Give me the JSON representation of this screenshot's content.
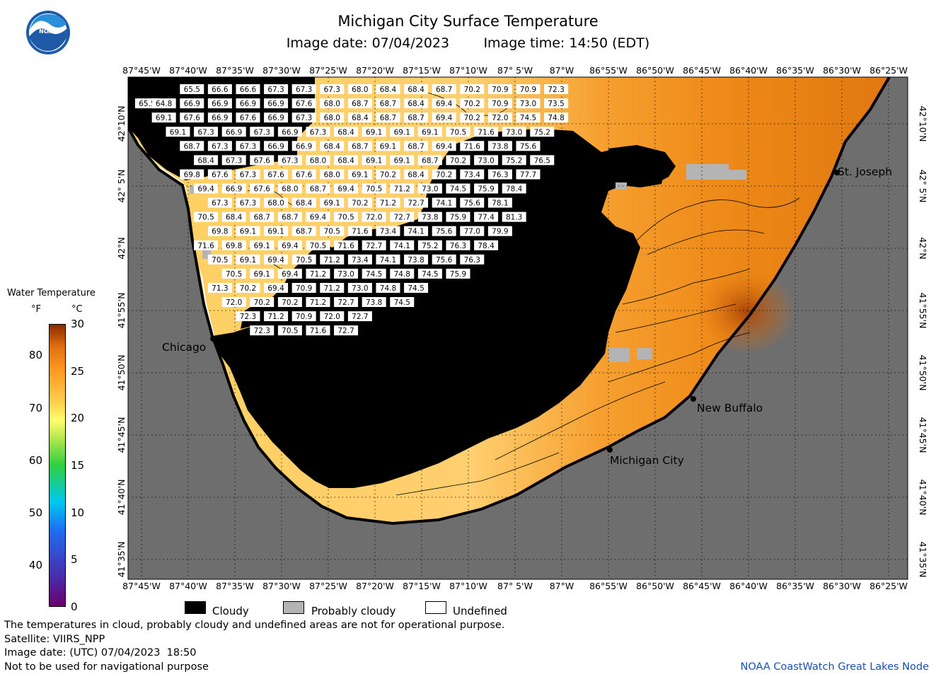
{
  "header": {
    "title": "Michigan City Surface Temperature",
    "image_date_label": "Image date: 07/04/2023",
    "image_time_label": "Image time: 14:50 (EDT)",
    "logo_text": "NOAA"
  },
  "map": {
    "lon_labels": [
      "87°45'W",
      "87°40'W",
      "87°35'W",
      "87°30'W",
      "87°25'W",
      "87°20'W",
      "87°15'W",
      "87°10'W",
      "87° 5'W",
      "87°W",
      "86°55'W",
      "86°50'W",
      "86°45'W",
      "86°40'W",
      "86°35'W",
      "86°30'W",
      "86°25'W"
    ],
    "lat_labels": [
      "42°10'N",
      "42° 5'N",
      "42°N",
      "41°55'N",
      "41°50'N",
      "41°45'N",
      "41°40'N",
      "41°35'N"
    ],
    "places": [
      {
        "name": "St. Joseph"
      },
      {
        "name": "Chicago"
      },
      {
        "name": "New Buffalo"
      },
      {
        "name": "Michigan City"
      }
    ],
    "colors": {
      "land": "#6e6e6e",
      "cloud": "#000000",
      "probably_cloudy": "#b4b4b4",
      "undefined": "#ffffff"
    },
    "temperature_labels": [
      {
        "lon": -87.66,
        "lat": 42.213,
        "value": "65.5"
      },
      {
        "lon": -87.61,
        "lat": 42.213,
        "value": "66.6"
      },
      {
        "lon": -87.56,
        "lat": 42.213,
        "value": "66.6"
      },
      {
        "lon": -87.51,
        "lat": 42.213,
        "value": "67.3"
      },
      {
        "lon": -87.46,
        "lat": 42.213,
        "value": "67.3"
      },
      {
        "lon": -87.41,
        "lat": 42.213,
        "value": "67.3"
      },
      {
        "lon": -87.36,
        "lat": 42.213,
        "value": "68.0"
      },
      {
        "lon": -87.31,
        "lat": 42.213,
        "value": "68.4"
      },
      {
        "lon": -87.26,
        "lat": 42.213,
        "value": "68.4"
      },
      {
        "lon": -87.21,
        "lat": 42.213,
        "value": "68.7"
      },
      {
        "lon": -87.16,
        "lat": 42.213,
        "value": "70.2"
      },
      {
        "lon": -87.11,
        "lat": 42.213,
        "value": "70.9"
      },
      {
        "lon": -87.06,
        "lat": 42.213,
        "value": "70.9"
      },
      {
        "lon": -87.01,
        "lat": 42.213,
        "value": "72.3"
      },
      {
        "lon": -87.74,
        "lat": 42.194,
        "value": "65.5"
      },
      {
        "lon": -87.71,
        "lat": 42.194,
        "value": "64.8"
      },
      {
        "lon": -87.66,
        "lat": 42.194,
        "value": "66.9"
      },
      {
        "lon": -87.61,
        "lat": 42.194,
        "value": "66.9"
      },
      {
        "lon": -87.56,
        "lat": 42.194,
        "value": "66.9"
      },
      {
        "lon": -87.51,
        "lat": 42.194,
        "value": "66.9"
      },
      {
        "lon": -87.46,
        "lat": 42.194,
        "value": "67.6"
      },
      {
        "lon": -87.41,
        "lat": 42.194,
        "value": "68.0"
      },
      {
        "lon": -87.36,
        "lat": 42.194,
        "value": "68.7"
      },
      {
        "lon": -87.31,
        "lat": 42.194,
        "value": "68.7"
      },
      {
        "lon": -87.26,
        "lat": 42.194,
        "value": "68.4"
      },
      {
        "lon": -87.21,
        "lat": 42.194,
        "value": "69.4"
      },
      {
        "lon": -87.16,
        "lat": 42.194,
        "value": "70.2"
      },
      {
        "lon": -87.11,
        "lat": 42.194,
        "value": "70.9"
      },
      {
        "lon": -87.06,
        "lat": 42.194,
        "value": "73.0"
      },
      {
        "lon": -87.01,
        "lat": 42.194,
        "value": "73.5"
      },
      {
        "lon": -87.71,
        "lat": 42.175,
        "value": "69.1"
      },
      {
        "lon": -87.66,
        "lat": 42.175,
        "value": "67.6"
      },
      {
        "lon": -87.61,
        "lat": 42.175,
        "value": "66.9"
      },
      {
        "lon": -87.56,
        "lat": 42.175,
        "value": "67.6"
      },
      {
        "lon": -87.51,
        "lat": 42.175,
        "value": "66.9"
      },
      {
        "lon": -87.46,
        "lat": 42.175,
        "value": "67.3"
      },
      {
        "lon": -87.41,
        "lat": 42.175,
        "value": "68.0"
      },
      {
        "lon": -87.36,
        "lat": 42.175,
        "value": "68.4"
      },
      {
        "lon": -87.31,
        "lat": 42.175,
        "value": "68.7"
      },
      {
        "lon": -87.26,
        "lat": 42.175,
        "value": "68.7"
      },
      {
        "lon": -87.21,
        "lat": 42.175,
        "value": "69.4"
      },
      {
        "lon": -87.16,
        "lat": 42.175,
        "value": "70.2"
      },
      {
        "lon": -87.11,
        "lat": 42.175,
        "value": "72.0"
      },
      {
        "lon": -87.06,
        "lat": 42.175,
        "value": "74.5"
      },
      {
        "lon": -87.01,
        "lat": 42.175,
        "value": "74.8"
      },
      {
        "lon": -87.685,
        "lat": 42.156,
        "value": "69.1"
      },
      {
        "lon": -87.635,
        "lat": 42.156,
        "value": "67.3"
      },
      {
        "lon": -87.585,
        "lat": 42.156,
        "value": "66.9"
      },
      {
        "lon": -87.535,
        "lat": 42.156,
        "value": "67.3"
      },
      {
        "lon": -87.485,
        "lat": 42.156,
        "value": "66.9"
      },
      {
        "lon": -87.435,
        "lat": 42.156,
        "value": "67.3"
      },
      {
        "lon": -87.385,
        "lat": 42.156,
        "value": "68.4"
      },
      {
        "lon": -87.335,
        "lat": 42.156,
        "value": "69.1"
      },
      {
        "lon": -87.285,
        "lat": 42.156,
        "value": "69.1"
      },
      {
        "lon": -87.235,
        "lat": 42.156,
        "value": "69.1"
      },
      {
        "lon": -87.185,
        "lat": 42.156,
        "value": "70.5"
      },
      {
        "lon": -87.135,
        "lat": 42.156,
        "value": "71.6"
      },
      {
        "lon": -87.085,
        "lat": 42.156,
        "value": "73.0"
      },
      {
        "lon": -87.035,
        "lat": 42.156,
        "value": "75.2"
      },
      {
        "lon": -87.66,
        "lat": 42.137,
        "value": "68.7"
      },
      {
        "lon": -87.61,
        "lat": 42.137,
        "value": "67.3"
      },
      {
        "lon": -87.56,
        "lat": 42.137,
        "value": "67.3"
      },
      {
        "lon": -87.51,
        "lat": 42.137,
        "value": "66.9"
      },
      {
        "lon": -87.46,
        "lat": 42.137,
        "value": "66.9"
      },
      {
        "lon": -87.41,
        "lat": 42.137,
        "value": "68.4"
      },
      {
        "lon": -87.36,
        "lat": 42.137,
        "value": "68.7"
      },
      {
        "lon": -87.31,
        "lat": 42.137,
        "value": "69.1"
      },
      {
        "lon": -87.26,
        "lat": 42.137,
        "value": "68.7"
      },
      {
        "lon": -87.21,
        "lat": 42.137,
        "value": "69.4"
      },
      {
        "lon": -87.16,
        "lat": 42.137,
        "value": "71.6"
      },
      {
        "lon": -87.11,
        "lat": 42.137,
        "value": "73.8"
      },
      {
        "lon": -87.06,
        "lat": 42.137,
        "value": "75.6"
      },
      {
        "lon": -87.635,
        "lat": 42.118,
        "value": "68.4"
      },
      {
        "lon": -87.585,
        "lat": 42.118,
        "value": "67.3"
      },
      {
        "lon": -87.535,
        "lat": 42.118,
        "value": "67.6"
      },
      {
        "lon": -87.485,
        "lat": 42.118,
        "value": "67.3"
      },
      {
        "lon": -87.435,
        "lat": 42.118,
        "value": "68.0"
      },
      {
        "lon": -87.385,
        "lat": 42.118,
        "value": "68.4"
      },
      {
        "lon": -87.335,
        "lat": 42.118,
        "value": "69.1"
      },
      {
        "lon": -87.285,
        "lat": 42.118,
        "value": "69.1"
      },
      {
        "lon": -87.235,
        "lat": 42.118,
        "value": "68.7"
      },
      {
        "lon": -87.185,
        "lat": 42.118,
        "value": "70.2"
      },
      {
        "lon": -87.135,
        "lat": 42.118,
        "value": "73.0"
      },
      {
        "lon": -87.085,
        "lat": 42.118,
        "value": "75.2"
      },
      {
        "lon": -87.035,
        "lat": 42.118,
        "value": "76.5"
      },
      {
        "lon": -87.66,
        "lat": 42.099,
        "value": "69.8"
      },
      {
        "lon": -87.61,
        "lat": 42.099,
        "value": "67.6"
      },
      {
        "lon": -87.56,
        "lat": 42.099,
        "value": "67.3"
      },
      {
        "lon": -87.51,
        "lat": 42.099,
        "value": "67.6"
      },
      {
        "lon": -87.46,
        "lat": 42.099,
        "value": "67.6"
      },
      {
        "lon": -87.41,
        "lat": 42.099,
        "value": "68.0"
      },
      {
        "lon": -87.36,
        "lat": 42.099,
        "value": "69.1"
      },
      {
        "lon": -87.31,
        "lat": 42.099,
        "value": "70.2"
      },
      {
        "lon": -87.26,
        "lat": 42.099,
        "value": "68.4"
      },
      {
        "lon": -87.21,
        "lat": 42.099,
        "value": "70.2"
      },
      {
        "lon": -87.16,
        "lat": 42.099,
        "value": "73.4"
      },
      {
        "lon": -87.11,
        "lat": 42.099,
        "value": "76.3"
      },
      {
        "lon": -87.06,
        "lat": 42.099,
        "value": "77.7"
      },
      {
        "lon": -87.635,
        "lat": 42.08,
        "value": "69.4"
      },
      {
        "lon": -87.585,
        "lat": 42.08,
        "value": "66.9"
      },
      {
        "lon": -87.535,
        "lat": 42.08,
        "value": "67.6"
      },
      {
        "lon": -87.485,
        "lat": 42.08,
        "value": "68.0"
      },
      {
        "lon": -87.435,
        "lat": 42.08,
        "value": "68.7"
      },
      {
        "lon": -87.385,
        "lat": 42.08,
        "value": "69.4"
      },
      {
        "lon": -87.335,
        "lat": 42.08,
        "value": "70.5"
      },
      {
        "lon": -87.285,
        "lat": 42.08,
        "value": "71.2"
      },
      {
        "lon": -87.235,
        "lat": 42.08,
        "value": "73.0"
      },
      {
        "lon": -87.185,
        "lat": 42.08,
        "value": "74.5"
      },
      {
        "lon": -87.135,
        "lat": 42.08,
        "value": "75.9"
      },
      {
        "lon": -87.085,
        "lat": 42.08,
        "value": "78.4"
      },
      {
        "lon": -87.61,
        "lat": 42.061,
        "value": "67.3"
      },
      {
        "lon": -87.56,
        "lat": 42.061,
        "value": "67.3"
      },
      {
        "lon": -87.51,
        "lat": 42.061,
        "value": "68.0"
      },
      {
        "lon": -87.46,
        "lat": 42.061,
        "value": "68.4"
      },
      {
        "lon": -87.41,
        "lat": 42.061,
        "value": "69.1"
      },
      {
        "lon": -87.36,
        "lat": 42.061,
        "value": "70.2"
      },
      {
        "lon": -87.31,
        "lat": 42.061,
        "value": "71.2"
      },
      {
        "lon": -87.26,
        "lat": 42.061,
        "value": "72.7"
      },
      {
        "lon": -87.21,
        "lat": 42.061,
        "value": "74.1"
      },
      {
        "lon": -87.16,
        "lat": 42.061,
        "value": "75.6"
      },
      {
        "lon": -87.11,
        "lat": 42.061,
        "value": "78.1"
      },
      {
        "lon": -87.635,
        "lat": 42.042,
        "value": "70.5"
      },
      {
        "lon": -87.585,
        "lat": 42.042,
        "value": "68.4"
      },
      {
        "lon": -87.535,
        "lat": 42.042,
        "value": "68.7"
      },
      {
        "lon": -87.485,
        "lat": 42.042,
        "value": "68.7"
      },
      {
        "lon": -87.435,
        "lat": 42.042,
        "value": "69.4"
      },
      {
        "lon": -87.385,
        "lat": 42.042,
        "value": "70.5"
      },
      {
        "lon": -87.335,
        "lat": 42.042,
        "value": "72.0"
      },
      {
        "lon": -87.285,
        "lat": 42.042,
        "value": "72.7"
      },
      {
        "lon": -87.235,
        "lat": 42.042,
        "value": "73.8"
      },
      {
        "lon": -87.185,
        "lat": 42.042,
        "value": "75.9"
      },
      {
        "lon": -87.135,
        "lat": 42.042,
        "value": "77.4"
      },
      {
        "lon": -87.085,
        "lat": 42.042,
        "value": "81.3"
      },
      {
        "lon": -87.61,
        "lat": 42.023,
        "value": "69.8"
      },
      {
        "lon": -87.56,
        "lat": 42.023,
        "value": "69.1"
      },
      {
        "lon": -87.51,
        "lat": 42.023,
        "value": "69.1"
      },
      {
        "lon": -87.46,
        "lat": 42.023,
        "value": "68.7"
      },
      {
        "lon": -87.41,
        "lat": 42.023,
        "value": "70.5"
      },
      {
        "lon": -87.36,
        "lat": 42.023,
        "value": "71.6"
      },
      {
        "lon": -87.31,
        "lat": 42.023,
        "value": "73.4"
      },
      {
        "lon": -87.26,
        "lat": 42.023,
        "value": "74.1"
      },
      {
        "lon": -87.21,
        "lat": 42.023,
        "value": "75.6"
      },
      {
        "lon": -87.16,
        "lat": 42.023,
        "value": "77.0"
      },
      {
        "lon": -87.11,
        "lat": 42.023,
        "value": "79.9"
      },
      {
        "lon": -87.635,
        "lat": 42.004,
        "value": "71.6"
      },
      {
        "lon": -87.585,
        "lat": 42.004,
        "value": "69.8"
      },
      {
        "lon": -87.535,
        "lat": 42.004,
        "value": "69.1"
      },
      {
        "lon": -87.485,
        "lat": 42.004,
        "value": "69.4"
      },
      {
        "lon": -87.435,
        "lat": 42.004,
        "value": "70.5"
      },
      {
        "lon": -87.385,
        "lat": 42.004,
        "value": "71.6"
      },
      {
        "lon": -87.335,
        "lat": 42.004,
        "value": "72.7"
      },
      {
        "lon": -87.285,
        "lat": 42.004,
        "value": "74.1"
      },
      {
        "lon": -87.235,
        "lat": 42.004,
        "value": "75.2"
      },
      {
        "lon": -87.185,
        "lat": 42.004,
        "value": "76.3"
      },
      {
        "lon": -87.135,
        "lat": 42.004,
        "value": "78.4"
      },
      {
        "lon": -87.61,
        "lat": 41.985,
        "value": "70.5"
      },
      {
        "lon": -87.56,
        "lat": 41.985,
        "value": "69.1"
      },
      {
        "lon": -87.51,
        "lat": 41.985,
        "value": "69.4"
      },
      {
        "lon": -87.46,
        "lat": 41.985,
        "value": "70.5"
      },
      {
        "lon": -87.41,
        "lat": 41.985,
        "value": "71.2"
      },
      {
        "lon": -87.36,
        "lat": 41.985,
        "value": "73.4"
      },
      {
        "lon": -87.31,
        "lat": 41.985,
        "value": "74.1"
      },
      {
        "lon": -87.26,
        "lat": 41.985,
        "value": "73.8"
      },
      {
        "lon": -87.21,
        "lat": 41.985,
        "value": "75.6"
      },
      {
        "lon": -87.16,
        "lat": 41.985,
        "value": "76.3"
      },
      {
        "lon": -87.585,
        "lat": 41.966,
        "value": "70.5"
      },
      {
        "lon": -87.535,
        "lat": 41.966,
        "value": "69.1"
      },
      {
        "lon": -87.485,
        "lat": 41.966,
        "value": "69.4"
      },
      {
        "lon": -87.435,
        "lat": 41.966,
        "value": "71.2"
      },
      {
        "lon": -87.385,
        "lat": 41.966,
        "value": "73.0"
      },
      {
        "lon": -87.335,
        "lat": 41.966,
        "value": "74.5"
      },
      {
        "lon": -87.285,
        "lat": 41.966,
        "value": "74.8"
      },
      {
        "lon": -87.235,
        "lat": 41.966,
        "value": "74.5"
      },
      {
        "lon": -87.185,
        "lat": 41.966,
        "value": "75.9"
      },
      {
        "lon": -87.61,
        "lat": 41.947,
        "value": "71.3"
      },
      {
        "lon": -87.56,
        "lat": 41.947,
        "value": "70.2"
      },
      {
        "lon": -87.51,
        "lat": 41.947,
        "value": "69.4"
      },
      {
        "lon": -87.46,
        "lat": 41.947,
        "value": "70.9"
      },
      {
        "lon": -87.41,
        "lat": 41.947,
        "value": "71.2"
      },
      {
        "lon": -87.36,
        "lat": 41.947,
        "value": "73.0"
      },
      {
        "lon": -87.31,
        "lat": 41.947,
        "value": "74.8"
      },
      {
        "lon": -87.26,
        "lat": 41.947,
        "value": "74.5"
      },
      {
        "lon": -87.585,
        "lat": 41.928,
        "value": "72.0"
      },
      {
        "lon": -87.535,
        "lat": 41.928,
        "value": "70.2"
      },
      {
        "lon": -87.485,
        "lat": 41.928,
        "value": "70.2"
      },
      {
        "lon": -87.435,
        "lat": 41.928,
        "value": "71.2"
      },
      {
        "lon": -87.385,
        "lat": 41.928,
        "value": "72.7"
      },
      {
        "lon": -87.335,
        "lat": 41.928,
        "value": "73.8"
      },
      {
        "lon": -87.285,
        "lat": 41.928,
        "value": "74.5"
      },
      {
        "lon": -87.56,
        "lat": 41.909,
        "value": "72.3"
      },
      {
        "lon": -87.51,
        "lat": 41.909,
        "value": "71.2"
      },
      {
        "lon": -87.46,
        "lat": 41.909,
        "value": "70.9"
      },
      {
        "lon": -87.41,
        "lat": 41.909,
        "value": "72.0"
      },
      {
        "lon": -87.36,
        "lat": 41.909,
        "value": "72.7"
      },
      {
        "lon": -87.535,
        "lat": 41.89,
        "value": "72.3"
      },
      {
        "lon": -87.485,
        "lat": 41.89,
        "value": "70.5"
      },
      {
        "lon": -87.435,
        "lat": 41.89,
        "value": "71.6"
      },
      {
        "lon": -87.385,
        "lat": 41.89,
        "value": "72.7"
      }
    ]
  },
  "legend": {
    "title": "Water Temperature",
    "unit_f": "°F",
    "unit_c": "°C",
    "f_ticks": [
      {
        "value": 80,
        "label": "80"
      },
      {
        "value": 70,
        "label": "70"
      },
      {
        "value": 60,
        "label": "60"
      },
      {
        "value": 50,
        "label": "50"
      },
      {
        "value": 40,
        "label": "40"
      }
    ],
    "c_ticks": [
      {
        "value": 30,
        "label": "30"
      },
      {
        "value": 25,
        "label": "25"
      },
      {
        "value": 20,
        "label": "20"
      },
      {
        "value": 15,
        "label": "15"
      },
      {
        "value": 10,
        "label": "10"
      },
      {
        "value": 5,
        "label": "5"
      },
      {
        "value": 0,
        "label": "0"
      }
    ],
    "keys": {
      "cloudy": "Cloudy",
      "probably_cloudy": "Probably cloudy",
      "undefined": "Undefined"
    }
  },
  "footer": {
    "line1": "The temperatures in cloud, probably cloudy and undefined areas are not for operational purpose.",
    "line2": "Satellite: VIIRS_NPP",
    "line3": "Image date: (UTC) 07/04/2023  18:50",
    "line4": "Not to be used for navigational purpose",
    "credit": "NOAA CoastWatch Great Lakes Node"
  }
}
